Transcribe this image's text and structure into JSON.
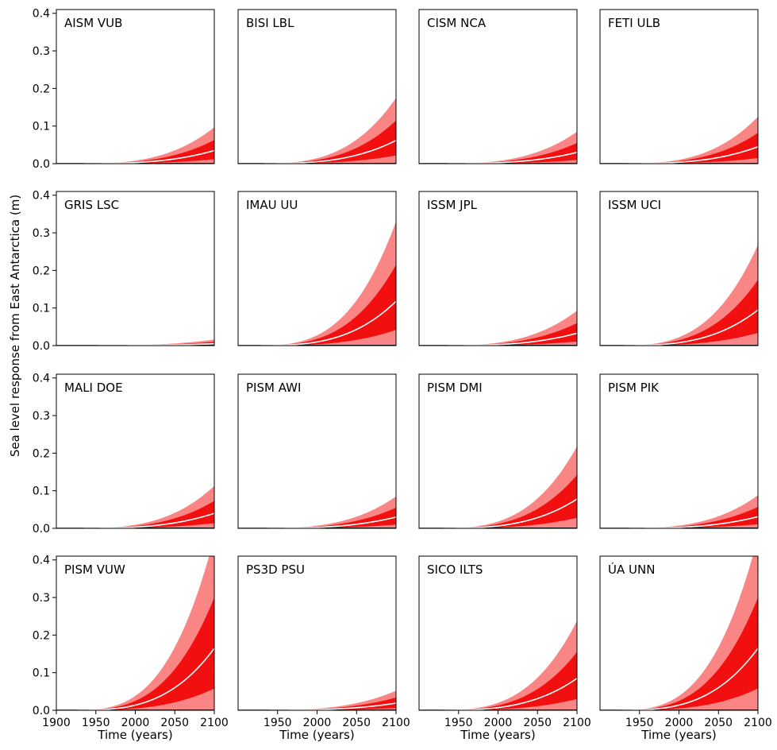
{
  "figure": {
    "ylabel": "Sea level response from East Antarctica (m)",
    "xlabel": "Time (years)"
  },
  "colors": {
    "outer_band": "#f98585",
    "inner_band": "#f20f0f",
    "median_line": "#ffffff",
    "zero_line": "#000000"
  },
  "chart_data": {
    "type": "area",
    "grid": false,
    "x_axis": {
      "range": [
        1900,
        2100
      ],
      "ticks": [
        1900,
        1950,
        2000,
        2050,
        2100
      ],
      "tick_labels": [
        "1900",
        "1950",
        "2000",
        "2050",
        "2100"
      ]
    },
    "y_axis": {
      "range": [
        0,
        0.41
      ],
      "ticks": [
        0.0,
        0.1,
        0.2,
        0.3,
        0.4
      ],
      "tick_labels": [
        "0.0",
        "0.1",
        "0.2",
        "0.3",
        "0.4"
      ]
    },
    "series_meaning": [
      "outer band upper bound",
      "inner band upper bound",
      "median (white line)",
      "inner band lower bound",
      "outer band lower bound"
    ],
    "panels": [
      {
        "name": "AISM VUB",
        "outer_upper_2100": 0.097,
        "inner_upper_2100": 0.063,
        "median_2100": 0.035,
        "inner_lower_2100": 0.012,
        "outer_lower_2100": 0.0
      },
      {
        "name": "BISI LBL",
        "outer_upper_2100": 0.175,
        "inner_upper_2100": 0.115,
        "median_2100": 0.062,
        "inner_lower_2100": 0.022,
        "outer_lower_2100": 0.0
      },
      {
        "name": "CISM NCA",
        "outer_upper_2100": 0.085,
        "inner_upper_2100": 0.055,
        "median_2100": 0.03,
        "inner_lower_2100": 0.01,
        "outer_lower_2100": 0.0
      },
      {
        "name": "FETI ULB",
        "outer_upper_2100": 0.125,
        "inner_upper_2100": 0.082,
        "median_2100": 0.045,
        "inner_lower_2100": 0.015,
        "outer_lower_2100": 0.0
      },
      {
        "name": "GRIS LSC",
        "outer_upper_2100": 0.016,
        "inner_upper_2100": 0.01,
        "median_2100": 0.005,
        "inner_lower_2100": 0.002,
        "outer_lower_2100": 0.0
      },
      {
        "name": "IMAU UU",
        "outer_upper_2100": 0.33,
        "inner_upper_2100": 0.215,
        "median_2100": 0.118,
        "inner_lower_2100": 0.042,
        "outer_lower_2100": 0.0
      },
      {
        "name": "ISSM JPL",
        "outer_upper_2100": 0.093,
        "inner_upper_2100": 0.06,
        "median_2100": 0.033,
        "inner_lower_2100": 0.011,
        "outer_lower_2100": 0.0
      },
      {
        "name": "ISSM UCI",
        "outer_upper_2100": 0.268,
        "inner_upper_2100": 0.175,
        "median_2100": 0.095,
        "inner_lower_2100": 0.034,
        "outer_lower_2100": 0.0
      },
      {
        "name": "MALI DOE",
        "outer_upper_2100": 0.113,
        "inner_upper_2100": 0.073,
        "median_2100": 0.04,
        "inner_lower_2100": 0.014,
        "outer_lower_2100": 0.0
      },
      {
        "name": "PISM AWI",
        "outer_upper_2100": 0.085,
        "inner_upper_2100": 0.055,
        "median_2100": 0.03,
        "inner_lower_2100": 0.01,
        "outer_lower_2100": 0.0
      },
      {
        "name": "PISM DMI",
        "outer_upper_2100": 0.218,
        "inner_upper_2100": 0.142,
        "median_2100": 0.078,
        "inner_lower_2100": 0.028,
        "outer_lower_2100": 0.0
      },
      {
        "name": "PISM PIK",
        "outer_upper_2100": 0.088,
        "inner_upper_2100": 0.057,
        "median_2100": 0.031,
        "inner_lower_2100": 0.011,
        "outer_lower_2100": 0.0
      },
      {
        "name": "PISM VUW",
        "outer_upper_2100": 0.46,
        "inner_upper_2100": 0.3,
        "median_2100": 0.165,
        "inner_lower_2100": 0.058,
        "outer_lower_2100": 0.0
      },
      {
        "name": "PS3D PSU",
        "outer_upper_2100": 0.052,
        "inner_upper_2100": 0.034,
        "median_2100": 0.019,
        "inner_lower_2100": 0.006,
        "outer_lower_2100": 0.0
      },
      {
        "name": "SICO ILTS",
        "outer_upper_2100": 0.238,
        "inner_upper_2100": 0.155,
        "median_2100": 0.085,
        "inner_lower_2100": 0.03,
        "outer_lower_2100": 0.0
      },
      {
        "name": "ÚA UNN",
        "outer_upper_2100": 0.46,
        "inner_upper_2100": 0.3,
        "median_2100": 0.165,
        "inner_lower_2100": 0.058,
        "outer_lower_2100": 0.0
      }
    ]
  }
}
